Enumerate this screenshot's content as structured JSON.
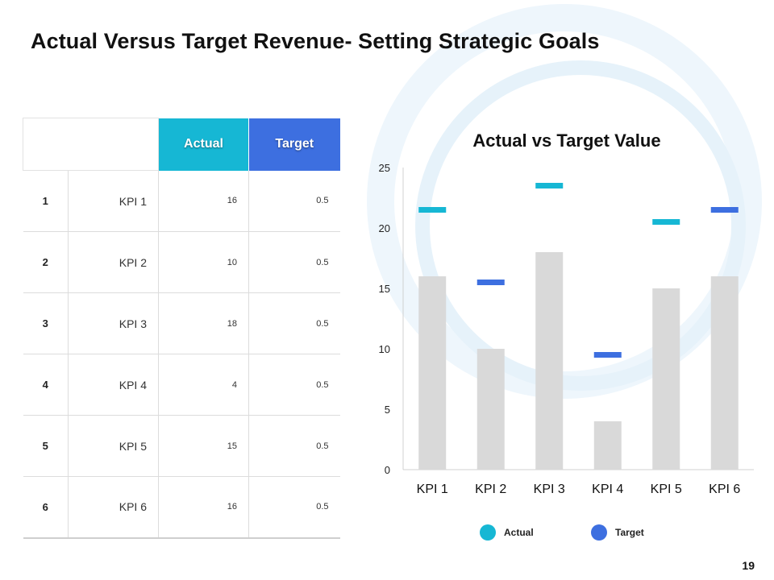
{
  "title": "Actual Versus Target Revenue- Setting Strategic Goals",
  "page_number": "19",
  "colors": {
    "actual": "#16b7d4",
    "target": "#3d6fe0",
    "bar": "#d9d9d9",
    "ring": "#eaf4fb"
  },
  "table": {
    "headers": {
      "actual": "Actual",
      "target": "Target"
    },
    "rows": [
      {
        "num": "1",
        "name": "KPI 1",
        "actual": "16",
        "target": "0.5"
      },
      {
        "num": "2",
        "name": "KPI 2",
        "actual": "10",
        "target": "0.5"
      },
      {
        "num": "3",
        "name": "KPI 3",
        "actual": "18",
        "target": "0.5"
      },
      {
        "num": "4",
        "name": "KPI 4",
        "actual": "4",
        "target": "0.5"
      },
      {
        "num": "5",
        "name": "KPI 5",
        "actual": "15",
        "target": "0.5"
      },
      {
        "num": "6",
        "name": "KPI 6",
        "actual": "16",
        "target": "0.5"
      }
    ]
  },
  "chart_data": {
    "type": "bar",
    "title": "Actual  vs Target Value",
    "categories": [
      "KPI 1",
      "KPI 2",
      "KPI 3",
      "KPI 4",
      "KPI 5",
      "KPI 6"
    ],
    "values": [
      16,
      10,
      18,
      4,
      15,
      16
    ],
    "markers": [
      {
        "value": 21.5,
        "series": "actual"
      },
      {
        "value": 15.5,
        "series": "target"
      },
      {
        "value": 23.5,
        "series": "actual"
      },
      {
        "value": 9.5,
        "series": "target"
      },
      {
        "value": 20.5,
        "series": "actual"
      },
      {
        "value": 21.5,
        "series": "target"
      }
    ],
    "ylim": [
      0,
      25
    ],
    "yticks": [
      0,
      5,
      10,
      15,
      20,
      25
    ],
    "xlabel": "",
    "ylabel": "",
    "legend": [
      {
        "key": "actual",
        "label": "Actual"
      },
      {
        "key": "target",
        "label": "Target"
      }
    ],
    "legend_position": "bottom"
  }
}
